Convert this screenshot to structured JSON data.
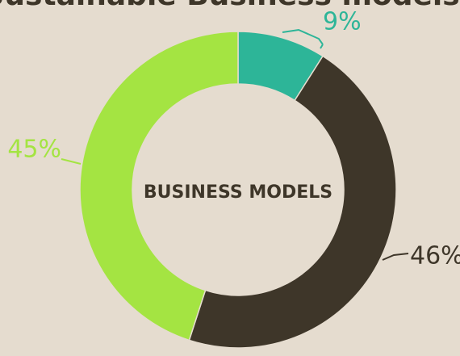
{
  "chart_data": {
    "type": "donut",
    "title": "Sustainable Business models?",
    "center_label": "BUSINESS MODELS",
    "values": [
      9,
      46,
      45
    ],
    "value_labels": [
      "9%",
      "46%",
      "45%"
    ],
    "colors": [
      "#2db598",
      "#3e3629",
      "#a4e442"
    ]
  }
}
